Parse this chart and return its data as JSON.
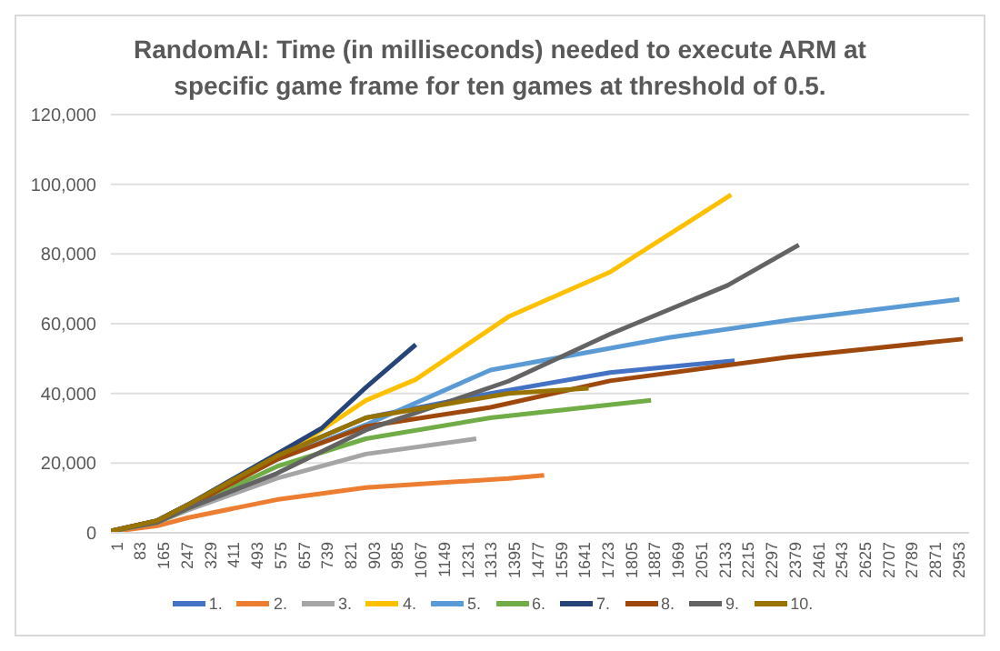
{
  "chart_data": {
    "type": "line",
    "title": "RandomAI: Time (in milliseconds) needed to execute ARM at specific game frame for ten games at threshold of 0.5.",
    "xlim": [
      1,
      3010
    ],
    "xticks": [
      1,
      83,
      165,
      247,
      329,
      411,
      493,
      575,
      657,
      739,
      821,
      903,
      985,
      1067,
      1149,
      1231,
      1313,
      1395,
      1477,
      1559,
      1641,
      1723,
      1805,
      1887,
      1969,
      2051,
      2133,
      2215,
      2297,
      2379,
      2461,
      2543,
      2625,
      2707,
      2789,
      2871,
      2953
    ],
    "ylim": [
      0,
      120000
    ],
    "yticks": [
      0,
      {
        "value": 20000,
        "label": "20,000"
      },
      {
        "value": 40000,
        "label": "40,000"
      },
      {
        "value": 60000,
        "label": "60,000"
      },
      {
        "value": 80000,
        "label": "80,000"
      },
      {
        "value": 100000,
        "label": "100,000"
      },
      {
        "value": 120000,
        "label": "120,000"
      }
    ],
    "grid": "y",
    "legend": "bottom",
    "marker": "none",
    "line_style": "solid",
    "series": [
      {
        "name": "1.",
        "color": "#4472c4",
        "x": [
          1,
          164,
          270,
          582,
          895,
          1332,
          1751,
          2188
        ],
        "values": [
          500,
          3500,
          8000,
          22000,
          33000,
          40000,
          46000,
          49400
        ]
      },
      {
        "name": "2.",
        "color": "#ed7d31",
        "x": [
          1,
          164,
          270,
          582,
          895,
          1395,
          1520
        ],
        "values": [
          300,
          2000,
          4300,
          9500,
          13000,
          15600,
          16500
        ]
      },
      {
        "name": "3.",
        "color": "#a5a5a5",
        "x": [
          1,
          164,
          270,
          582,
          895,
          1282
        ],
        "values": [
          500,
          3000,
          6500,
          15600,
          22600,
          27000
        ]
      },
      {
        "name": "4.",
        "color": "#ffc000",
        "x": [
          270,
          582,
          895,
          1070,
          1395,
          1751,
          2176
        ],
        "values": [
          8000,
          21000,
          38000,
          44000,
          62000,
          74800,
          97000
        ]
      },
      {
        "name": "5.",
        "color": "#5b9bd5",
        "x": [
          1,
          164,
          270,
          582,
          895,
          1332,
          1957,
          2376,
          2976
        ],
        "values": [
          500,
          3500,
          8000,
          21000,
          31000,
          46700,
          56000,
          61000,
          67000
        ]
      },
      {
        "name": "6.",
        "color": "#70ad47",
        "x": [
          1,
          164,
          270,
          582,
          895,
          1332,
          1895
        ],
        "values": [
          500,
          3000,
          7000,
          19000,
          27000,
          33000,
          38000
        ]
      },
      {
        "name": "7.",
        "color": "#264478",
        "x": [
          1,
          164,
          270,
          582,
          740,
          895,
          1070
        ],
        "values": [
          500,
          3500,
          8000,
          22600,
          30000,
          41700,
          54000
        ]
      },
      {
        "name": "8.",
        "color": "#9e480e",
        "x": [
          1,
          164,
          270,
          582,
          895,
          1332,
          1751,
          2376,
          2988
        ],
        "values": [
          500,
          3500,
          7500,
          21000,
          30500,
          36000,
          43600,
          50400,
          55600
        ]
      },
      {
        "name": "9.",
        "color": "#636363",
        "x": [
          1,
          164,
          270,
          582,
          895,
          1395,
          1751,
          2163,
          2413
        ],
        "values": [
          500,
          3000,
          7000,
          17000,
          29500,
          43500,
          57000,
          71000,
          82600
        ]
      },
      {
        "name": "10.",
        "color": "#997300",
        "x": [
          1,
          164,
          270,
          582,
          895,
          1395,
          1676
        ],
        "values": [
          500,
          3500,
          8000,
          22000,
          33000,
          40000,
          41500
        ]
      }
    ]
  }
}
